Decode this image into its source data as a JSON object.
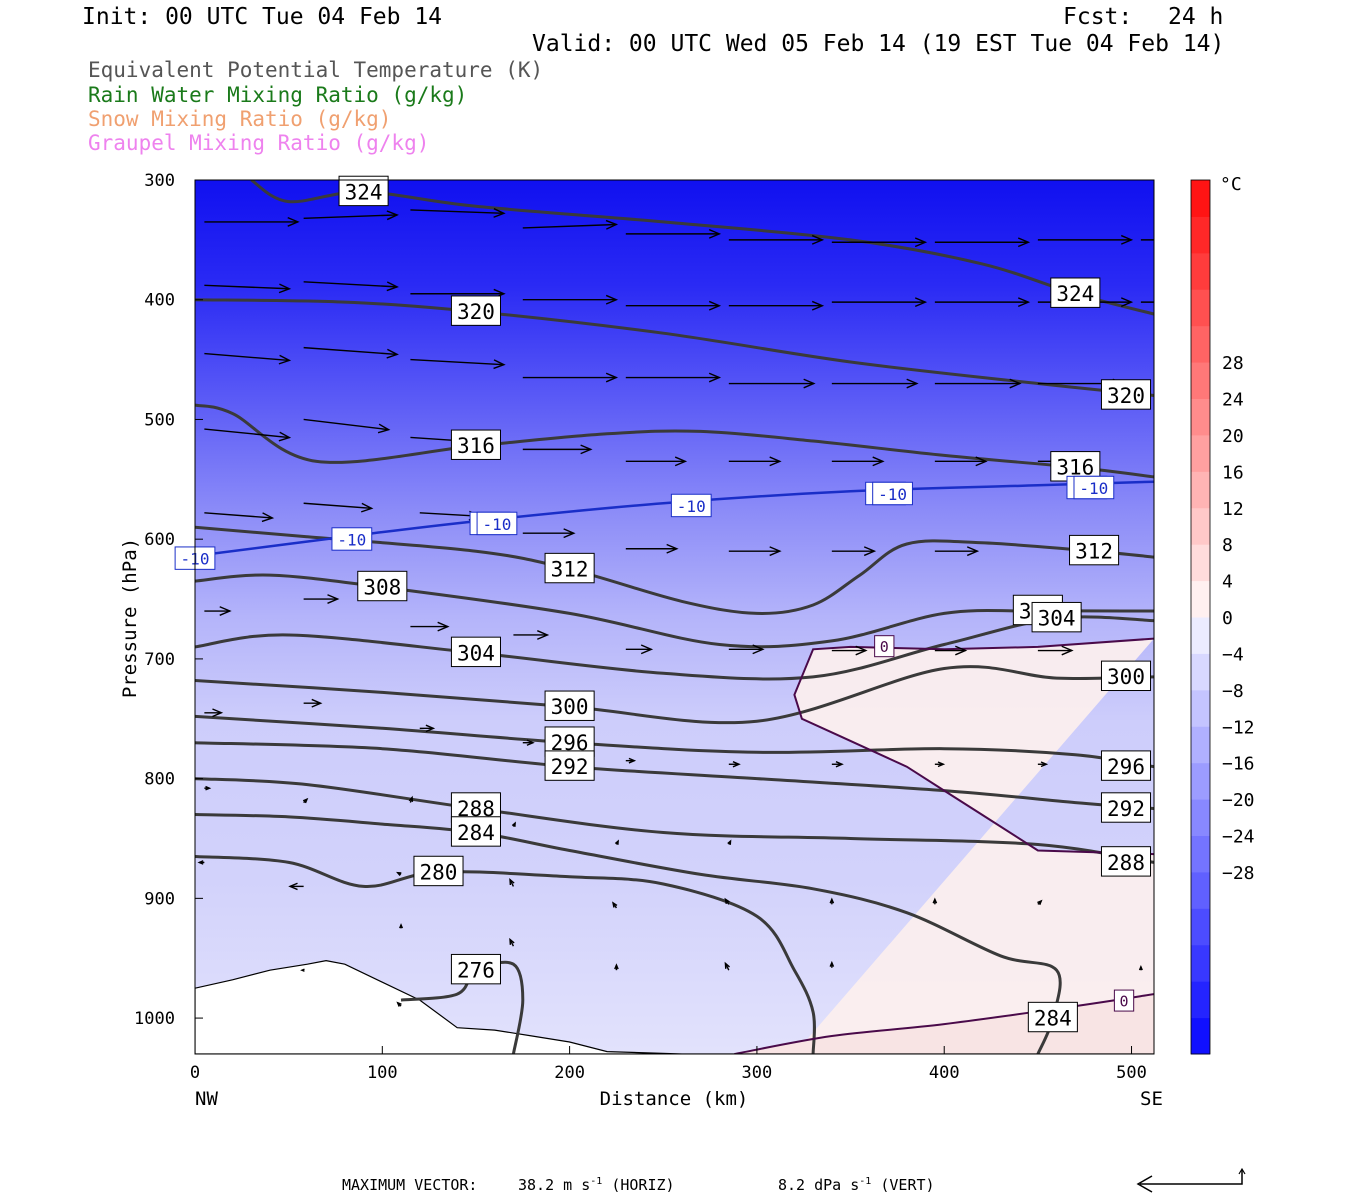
{
  "header": {
    "init": "Init: 00 UTC Tue 04 Feb 14",
    "fcst_label": "Fcst:",
    "fcst_value": "24 h",
    "valid": "Valid: 00 UTC Wed 05 Feb 14 (19 EST Tue 04 Feb 14)"
  },
  "legend": {
    "items": [
      {
        "label": "Equivalent Potential Temperature (K)",
        "color": "#555555"
      },
      {
        "label": "Rain Water Mixing Ratio (g/kg)",
        "color": "#1a7a1a"
      },
      {
        "label": "Snow Mixing Ratio (g/kg)",
        "color": "#f0a070"
      },
      {
        "label": "Graupel Mixing Ratio (g/kg)",
        "color": "#ee82ee"
      }
    ]
  },
  "footer": {
    "max_vector_label": "MAXIMUM VECTOR:",
    "horiz_value": "38.2 m s",
    "horiz_exp": "-1",
    "horiz_tag": "(HORIZ)",
    "vert_value": "8.2 dPa s",
    "vert_exp": "-1",
    "vert_tag": "(VERT)"
  },
  "chart_data": {
    "type": "cross-section",
    "xlabel": "Distance (km)",
    "ylabel": "Pressure (hPa)",
    "x_ticks": [
      0,
      100,
      200,
      300,
      400,
      500
    ],
    "xlim": [
      0,
      512
    ],
    "y_ticks": [
      300,
      400,
      500,
      600,
      700,
      800,
      900,
      1000
    ],
    "ylim": [
      300,
      1030
    ],
    "endpoints": {
      "left": "NW",
      "right": "SE"
    },
    "colorbar": {
      "unit": "°C",
      "ticks": [
        28,
        24,
        20,
        16,
        12,
        8,
        4,
        0,
        -4,
        -8,
        -12,
        -16,
        -20,
        -24,
        -28
      ],
      "colors": [
        "#1010ff",
        "#2424ff",
        "#3838ff",
        "#4c4cff",
        "#6060ff",
        "#7474ff",
        "#8888ff",
        "#9c9cff",
        "#b0b0ff",
        "#c4c4ff",
        "#d8d8ff",
        "#ececff",
        "#fff0f0",
        "#ffdcdc",
        "#ffc8c8",
        "#ffb4b4",
        "#ffa0a0",
        "#ff8c8c",
        "#ff7878",
        "#ff6464",
        "#ff5050",
        "#ff3c3c",
        "#ff2828",
        "#ff1414"
      ]
    },
    "theta_e_contours": [
      {
        "label": "324",
        "points": [
          [
            30,
            300
          ],
          [
            50,
            318
          ],
          [
            90,
            310
          ],
          [
            150,
            322
          ],
          [
            250,
            335
          ],
          [
            350,
            350
          ],
          [
            420,
            370
          ],
          [
            470,
            395
          ],
          [
            512,
            412
          ]
        ]
      },
      {
        "label": "320",
        "points": [
          [
            0,
            400
          ],
          [
            80,
            402
          ],
          [
            150,
            410
          ],
          [
            250,
            428
          ],
          [
            350,
            452
          ],
          [
            450,
            470
          ],
          [
            512,
            480
          ]
        ]
      },
      {
        "label": "316",
        "points": [
          [
            0,
            488
          ],
          [
            20,
            495
          ],
          [
            65,
            535
          ],
          [
            150,
            522
          ],
          [
            220,
            512
          ],
          [
            270,
            510
          ],
          [
            330,
            518
          ],
          [
            400,
            530
          ],
          [
            470,
            540
          ],
          [
            512,
            548
          ]
        ]
      },
      {
        "label": "312",
        "points": [
          [
            0,
            590
          ],
          [
            60,
            598
          ],
          [
            150,
            610
          ],
          [
            200,
            625
          ],
          [
            260,
            652
          ],
          [
            300,
            662
          ],
          [
            330,
            655
          ],
          [
            355,
            630
          ],
          [
            380,
            604
          ],
          [
            420,
            603
          ],
          [
            480,
            610
          ],
          [
            512,
            615
          ]
        ]
      },
      {
        "label": "308",
        "points": [
          [
            0,
            635
          ],
          [
            40,
            630
          ],
          [
            100,
            640
          ],
          [
            200,
            662
          ],
          [
            280,
            688
          ],
          [
            340,
            685
          ],
          [
            400,
            662
          ],
          [
            450,
            660
          ],
          [
            512,
            660
          ]
        ]
      },
      {
        "label": "304",
        "points": [
          [
            0,
            690
          ],
          [
            50,
            680
          ],
          [
            150,
            695
          ],
          [
            250,
            712
          ],
          [
            330,
            715
          ],
          [
            400,
            688
          ],
          [
            460,
            666
          ],
          [
            512,
            668
          ]
        ]
      },
      {
        "label": "300",
        "points": [
          [
            0,
            718
          ],
          [
            100,
            728
          ],
          [
            200,
            740
          ],
          [
            300,
            752
          ],
          [
            400,
            708
          ],
          [
            460,
            716
          ],
          [
            512,
            715
          ]
        ]
      },
      {
        "label": "296",
        "points": [
          [
            0,
            748
          ],
          [
            100,
            758
          ],
          [
            200,
            770
          ],
          [
            300,
            778
          ],
          [
            400,
            775
          ],
          [
            470,
            780
          ],
          [
            512,
            790
          ]
        ]
      },
      {
        "label": "292",
        "points": [
          [
            0,
            770
          ],
          [
            100,
            775
          ],
          [
            200,
            790
          ],
          [
            300,
            800
          ],
          [
            400,
            810
          ],
          [
            470,
            820
          ],
          [
            512,
            825
          ]
        ]
      },
      {
        "label": "288",
        "points": [
          [
            0,
            800
          ],
          [
            60,
            805
          ],
          [
            150,
            825
          ],
          [
            250,
            845
          ],
          [
            350,
            850
          ],
          [
            450,
            855
          ],
          [
            512,
            870
          ]
        ]
      },
      {
        "label": "284",
        "points": [
          [
            0,
            830
          ],
          [
            50,
            832
          ],
          [
            100,
            838
          ],
          [
            150,
            845
          ],
          [
            200,
            860
          ],
          [
            270,
            880
          ],
          [
            330,
            892
          ],
          [
            380,
            912
          ],
          [
            430,
            948
          ],
          [
            460,
            960
          ],
          [
            458,
            1000
          ],
          [
            450,
            1030
          ]
        ]
      },
      {
        "label": "280",
        "points": [
          [
            0,
            865
          ],
          [
            50,
            870
          ],
          [
            90,
            890
          ],
          [
            130,
            878
          ],
          [
            200,
            882
          ],
          [
            250,
            888
          ],
          [
            300,
            915
          ],
          [
            320,
            960
          ],
          [
            330,
            995
          ],
          [
            330,
            1030
          ]
        ]
      },
      {
        "label": "276",
        "points": [
          [
            110,
            985
          ],
          [
            140,
            980
          ],
          [
            150,
            960
          ],
          [
            170,
            955
          ],
          [
            175,
            985
          ],
          [
            170,
            1030
          ]
        ]
      }
    ],
    "minus10_isotherm": {
      "label": "-10",
      "color": "#1a2ec8",
      "points": [
        [
          0,
          614
        ],
        [
          80,
          598
        ],
        [
          150,
          585
        ],
        [
          250,
          570
        ],
        [
          350,
          560
        ],
        [
          450,
          555
        ],
        [
          512,
          552
        ]
      ]
    },
    "zero_isotherm": {
      "label": "0",
      "color": "#4a0a4a",
      "points": [
        [
          512,
          683
        ],
        [
          450,
          690
        ],
        [
          400,
          692
        ],
        [
          350,
          690
        ],
        [
          330,
          692
        ],
        [
          320,
          730
        ],
        [
          324,
          750
        ],
        [
          345,
          765
        ],
        [
          380,
          790
        ],
        [
          400,
          810
        ],
        [
          420,
          830
        ],
        [
          450,
          860
        ],
        [
          512,
          863
        ]
      ]
    },
    "zero_isotherm_low": {
      "label": "0",
      "color": "#4a0a4a",
      "points": [
        [
          288,
          1030
        ],
        [
          340,
          1015
        ],
        [
          400,
          1005
        ],
        [
          470,
          990
        ],
        [
          512,
          980
        ]
      ]
    },
    "wind_vectors": [
      {
        "x": 5,
        "p": 335,
        "u": 55,
        "v": 0
      },
      {
        "x": 58,
        "p": 332,
        "u": 55,
        "v": 2
      },
      {
        "x": 115,
        "p": 325,
        "u": 55,
        "v": -2
      },
      {
        "x": 175,
        "p": 340,
        "u": 55,
        "v": 2
      },
      {
        "x": 230,
        "p": 345,
        "u": 55,
        "v": 0
      },
      {
        "x": 285,
        "p": 350,
        "u": 55,
        "v": 0
      },
      {
        "x": 340,
        "p": 352,
        "u": 55,
        "v": 0
      },
      {
        "x": 395,
        "p": 352,
        "u": 55,
        "v": 0
      },
      {
        "x": 450,
        "p": 350,
        "u": 55,
        "v": 0
      },
      {
        "x": 505,
        "p": 350,
        "u": 55,
        "v": 0
      },
      {
        "x": 5,
        "p": 388,
        "u": 50,
        "v": -2
      },
      {
        "x": 58,
        "p": 385,
        "u": 55,
        "v": -3
      },
      {
        "x": 115,
        "p": 395,
        "u": 55,
        "v": 0
      },
      {
        "x": 175,
        "p": 400,
        "u": 55,
        "v": 0
      },
      {
        "x": 230,
        "p": 405,
        "u": 55,
        "v": 0
      },
      {
        "x": 285,
        "p": 405,
        "u": 55,
        "v": 0
      },
      {
        "x": 340,
        "p": 402,
        "u": 55,
        "v": 0
      },
      {
        "x": 395,
        "p": 402,
        "u": 55,
        "v": 0
      },
      {
        "x": 450,
        "p": 402,
        "u": 55,
        "v": 0
      },
      {
        "x": 505,
        "p": 402,
        "u": 55,
        "v": 0
      },
      {
        "x": 5,
        "p": 445,
        "u": 50,
        "v": -4
      },
      {
        "x": 58,
        "p": 440,
        "u": 55,
        "v": -4
      },
      {
        "x": 115,
        "p": 450,
        "u": 55,
        "v": -3
      },
      {
        "x": 175,
        "p": 465,
        "u": 55,
        "v": 0
      },
      {
        "x": 230,
        "p": 465,
        "u": 55,
        "v": 0
      },
      {
        "x": 285,
        "p": 470,
        "u": 50,
        "v": 0
      },
      {
        "x": 340,
        "p": 470,
        "u": 50,
        "v": 0
      },
      {
        "x": 395,
        "p": 470,
        "u": 50,
        "v": 0
      },
      {
        "x": 450,
        "p": 470,
        "u": 50,
        "v": 0
      },
      {
        "x": 5,
        "p": 508,
        "u": 50,
        "v": -5
      },
      {
        "x": 58,
        "p": 500,
        "u": 50,
        "v": -6
      },
      {
        "x": 115,
        "p": 515,
        "u": 45,
        "v": -3
      },
      {
        "x": 175,
        "p": 525,
        "u": 40,
        "v": 0
      },
      {
        "x": 230,
        "p": 535,
        "u": 35,
        "v": 0
      },
      {
        "x": 285,
        "p": 535,
        "u": 30,
        "v": 0
      },
      {
        "x": 340,
        "p": 535,
        "u": 30,
        "v": 0
      },
      {
        "x": 395,
        "p": 535,
        "u": 30,
        "v": 0
      },
      {
        "x": 450,
        "p": 535,
        "u": 30,
        "v": 0
      },
      {
        "x": 5,
        "p": 578,
        "u": 40,
        "v": -3
      },
      {
        "x": 58,
        "p": 570,
        "u": 40,
        "v": -3
      },
      {
        "x": 120,
        "p": 578,
        "u": 35,
        "v": -2
      },
      {
        "x": 175,
        "p": 595,
        "u": 30,
        "v": 0
      },
      {
        "x": 230,
        "p": 608,
        "u": 30,
        "v": 0
      },
      {
        "x": 285,
        "p": 610,
        "u": 30,
        "v": 0
      },
      {
        "x": 340,
        "p": 610,
        "u": 25,
        "v": 0
      },
      {
        "x": 395,
        "p": 610,
        "u": 25,
        "v": 0
      },
      {
        "x": 5,
        "p": 660,
        "u": 15,
        "v": 0
      },
      {
        "x": 58,
        "p": 650,
        "u": 20,
        "v": 0
      },
      {
        "x": 115,
        "p": 673,
        "u": 22,
        "v": 0
      },
      {
        "x": 170,
        "p": 680,
        "u": 20,
        "v": 0
      },
      {
        "x": 230,
        "p": 692,
        "u": 15,
        "v": 0
      },
      {
        "x": 285,
        "p": 692,
        "u": 20,
        "v": 0
      },
      {
        "x": 340,
        "p": 693,
        "u": 20,
        "v": 0
      },
      {
        "x": 395,
        "p": 693,
        "u": 18,
        "v": 0
      },
      {
        "x": 450,
        "p": 693,
        "u": 20,
        "v": 0
      },
      {
        "x": 5,
        "p": 745,
        "u": 10,
        "v": 0
      },
      {
        "x": 58,
        "p": 737,
        "u": 10,
        "v": 0
      },
      {
        "x": 120,
        "p": 758,
        "u": 8,
        "v": 0
      },
      {
        "x": 175,
        "p": 770,
        "u": 6,
        "v": 0
      },
      {
        "x": 230,
        "p": 785,
        "u": 5,
        "v": 0
      },
      {
        "x": 285,
        "p": 788,
        "u": 6,
        "v": 0
      },
      {
        "x": 340,
        "p": 788,
        "u": 6,
        "v": 0
      },
      {
        "x": 395,
        "p": 788,
        "u": 5,
        "v": 0
      },
      {
        "x": 450,
        "p": 788,
        "u": 5,
        "v": 0
      },
      {
        "x": 5,
        "p": 808,
        "u": 3,
        "v": 0
      },
      {
        "x": 58,
        "p": 820,
        "u": 2,
        "v": 2
      },
      {
        "x": 115,
        "p": 820,
        "u": 1,
        "v": 3
      },
      {
        "x": 170,
        "p": 840,
        "u": 1,
        "v": 2
      },
      {
        "x": 225,
        "p": 855,
        "u": 1,
        "v": 2
      },
      {
        "x": 285,
        "p": 855,
        "u": 1,
        "v": 2
      },
      {
        "x": 5,
        "p": 870,
        "u": -3,
        "v": 0
      },
      {
        "x": 58,
        "p": 890,
        "u": -8,
        "v": 0
      },
      {
        "x": 110,
        "p": 880,
        "u": -2,
        "v": 1
      },
      {
        "x": 170,
        "p": 890,
        "u": -2,
        "v": 4
      },
      {
        "x": 225,
        "p": 908,
        "u": -2,
        "v": 3
      },
      {
        "x": 285,
        "p": 905,
        "u": -2,
        "v": 3
      },
      {
        "x": 340,
        "p": 905,
        "u": 0,
        "v": 3
      },
      {
        "x": 395,
        "p": 905,
        "u": 0,
        "v": 3
      },
      {
        "x": 450,
        "p": 905,
        "u": 2,
        "v": 2
      },
      {
        "x": 58,
        "p": 960,
        "u": -1,
        "v": 0
      },
      {
        "x": 110,
        "p": 925,
        "u": 0,
        "v": 2
      },
      {
        "x": 170,
        "p": 940,
        "u": -2,
        "v": 4
      },
      {
        "x": 225,
        "p": 960,
        "u": 0,
        "v": 3
      },
      {
        "x": 285,
        "p": 960,
        "u": -2,
        "v": 4
      },
      {
        "x": 340,
        "p": 958,
        "u": 0,
        "v": 3
      },
      {
        "x": 110,
        "p": 990,
        "u": -2,
        "v": 2
      },
      {
        "x": 505,
        "p": 960,
        "u": 0,
        "v": 2
      }
    ],
    "terrain": [
      [
        0,
        975
      ],
      [
        20,
        968
      ],
      [
        40,
        960
      ],
      [
        60,
        955
      ],
      [
        70,
        952
      ],
      [
        80,
        955
      ],
      [
        100,
        970
      ],
      [
        120,
        985
      ],
      [
        140,
        1008
      ],
      [
        160,
        1010
      ],
      [
        180,
        1015
      ],
      [
        200,
        1020
      ],
      [
        220,
        1028
      ],
      [
        260,
        1030
      ],
      [
        512,
        1030
      ]
    ]
  }
}
